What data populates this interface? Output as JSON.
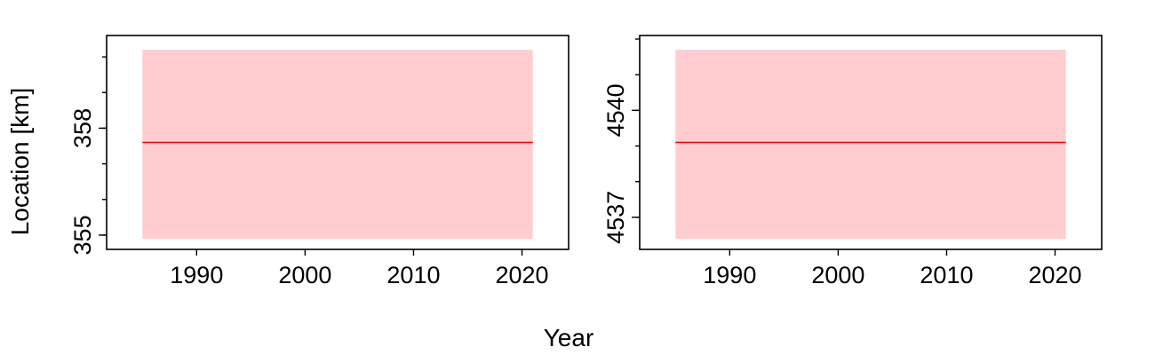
{
  "figure": {
    "xlabel": "Year",
    "ylabel": "Location [km]"
  },
  "colors": {
    "line": "#e8000b",
    "band": "#ffcdcf",
    "axes": "#000000"
  },
  "chart_data": [
    {
      "type": "line",
      "x_ticks": [
        "1990",
        "2000",
        "2010",
        "2020"
      ],
      "y_ticks": [
        "355",
        "358"
      ],
      "xlim": [
        1981.7,
        2024.3
      ],
      "ylim": [
        354.6,
        360.6
      ],
      "series": [
        {
          "x": [
            1985,
            2021
          ],
          "y": [
            357.6,
            357.6
          ],
          "band_low": [
            354.9,
            354.9
          ],
          "band_high": [
            360.2,
            360.2
          ]
        }
      ]
    },
    {
      "type": "line",
      "x_ticks": [
        "1990",
        "2000",
        "2010",
        "2020"
      ],
      "y_ticks": [
        "4537",
        "4540"
      ],
      "xlim": [
        1981.7,
        2024.3
      ],
      "ylim": [
        4536.1,
        4542.1
      ],
      "series": [
        {
          "x": [
            1985,
            2021
          ],
          "y": [
            4539.1,
            4539.1
          ],
          "band_low": [
            4536.4,
            4536.4
          ],
          "band_high": [
            4541.7,
            4541.7
          ]
        }
      ]
    }
  ]
}
